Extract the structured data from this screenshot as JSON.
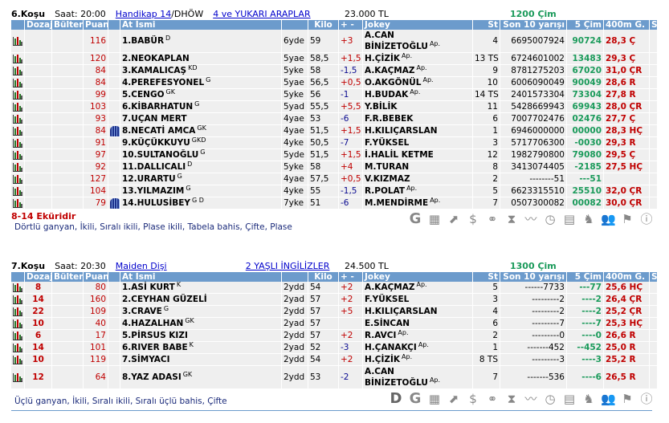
{
  "columns": {
    "dozaj": "Dozaj",
    "bulten": "Bülten",
    "puan": "Puan",
    "at_ismi": "At İsmi",
    "kilo": "Kilo",
    "plusminus": "+ -",
    "jokey": "Jokey",
    "st": "St",
    "son10": "Son 10 yarışı",
    "cim5": "5 Çim",
    "g400": "400m G.",
    "s": "S"
  },
  "colors": {
    "header_bg": "#6c9bcc",
    "row_bg": "#efefef",
    "positive": "#c00000",
    "negative": "#0a0a90",
    "green": "#1a9a5a",
    "red": "#c00000"
  },
  "races": [
    {
      "title": "6.Koşu",
      "time": "Saat: 20:00",
      "type": "Handikap  14",
      "type_suffix": "/DHÖW",
      "group": "4 ve YUKARI ARAPLAR",
      "prize": "23.000 TL",
      "distance": "1200 Çim",
      "note": "8-14 Eküridir",
      "bets": "Dörtlü ganyan, İkili, Sıralı ikili, Plase ikili, Tabela bahis, Çifte, Plase",
      "tools": [
        "G",
        "hourglass-calc",
        "trend-arrow",
        "$",
        "binoculars",
        "hourglass",
        "line-chart",
        "stopwatch",
        "calculator",
        "horse-head",
        "people",
        "jockey-flag",
        "info"
      ],
      "tool_glyphs": [
        "G",
        "▦",
        "⬈",
        "$",
        "⚭",
        "⧗",
        "〰",
        "◷",
        "▤",
        "♞",
        "👥",
        "⚑",
        "ⓘ"
      ],
      "horses": [
        {
          "dozaj": "",
          "bulten": "",
          "puan": "116",
          "silk": false,
          "name": "1.BABÜR",
          "sup": "D",
          "age": "6yde",
          "kilo": "59",
          "pm": "+3",
          "jokey": "A.CAN BİNİZETOĞLU",
          "jsup": "Ap.",
          "st": "4",
          "son10": "6695007924",
          "cim5": "90724",
          "g400": "28,3 Ç",
          "tall": true
        },
        {
          "dozaj": "",
          "bulten": "",
          "puan": "120",
          "silk": false,
          "name": "2.NEOKAPLAN",
          "sup": "",
          "age": "5yae",
          "kilo": "58,5",
          "pm": "+1,5",
          "jokey": "H.ÇİZİK",
          "jsup": "Ap.",
          "st": "13 TS",
          "son10": "6724601002",
          "cim5": "13483",
          "g400": "29,3 Ç"
        },
        {
          "dozaj": "",
          "bulten": "",
          "puan": "84",
          "silk": false,
          "name": "3.KAMALICAŞ",
          "sup": "KD",
          "age": "5yke",
          "kilo": "58",
          "pm": "-1,5",
          "jokey": "A.KAÇMAZ",
          "jsup": "Ap.",
          "st": "9",
          "son10": "8781275203",
          "cim5": "67020",
          "g400": "31,0 ÇR"
        },
        {
          "dozaj": "",
          "bulten": "",
          "puan": "84",
          "silk": false,
          "name": "4.PEREFESYONEL",
          "sup": "G",
          "age": "5yae",
          "kilo": "56,5",
          "pm": "+0,5",
          "jokey": "O.AKGÖNÜL",
          "jsup": "Ap.",
          "st": "10",
          "son10": "6006090049",
          "cim5": "90049",
          "g400": "28,6 R"
        },
        {
          "dozaj": "",
          "bulten": "",
          "puan": "99",
          "silk": false,
          "name": "5.CENGO",
          "sup": "GK",
          "age": "5yke",
          "kilo": "56",
          "pm": "-1",
          "jokey": "H.BUDAK",
          "jsup": "Ap.",
          "st": "14 TS",
          "son10": "2401573304",
          "cim5": "73304",
          "g400": "27,8 R"
        },
        {
          "dozaj": "",
          "bulten": "",
          "puan": "103",
          "silk": false,
          "name": "6.KİBARHATUN",
          "sup": "G",
          "age": "5yad",
          "kilo": "55,5",
          "pm": "+5,5",
          "jokey": "Y.BİLİK",
          "jsup": "",
          "st": "11",
          "son10": "5428669943",
          "cim5": "69943",
          "g400": "28,0 ÇR"
        },
        {
          "dozaj": "",
          "bulten": "",
          "puan": "93",
          "silk": false,
          "name": "7.UÇAN MERT",
          "sup": "",
          "age": "4yae",
          "kilo": "53",
          "pm": "-6",
          "jokey": "F.R.BEBEK",
          "jsup": "",
          "st": "6",
          "son10": "7007702476",
          "cim5": "02476",
          "g400": "27,7 Ç"
        },
        {
          "dozaj": "",
          "bulten": "",
          "puan": "84",
          "silk": true,
          "name": "8.NECATİ AMCA",
          "sup": "GK",
          "age": "4yae",
          "kilo": "51,5",
          "pm": "+1,5",
          "jokey": "H.KILIÇARSLAN",
          "jsup": "",
          "st": "1",
          "son10": "6946000000",
          "cim5": "00000",
          "g400": "28,3 HÇ"
        },
        {
          "dozaj": "",
          "bulten": "",
          "puan": "91",
          "silk": false,
          "name": "9.KÜÇÜKKUYU",
          "sup": "GKD",
          "age": "4yke",
          "kilo": "50,5",
          "pm": "-7",
          "jokey": "F.YÜKSEL",
          "jsup": "",
          "st": "3",
          "son10": "5717706300",
          "cim5": "-0030",
          "g400": "29,3 R"
        },
        {
          "dozaj": "",
          "bulten": "",
          "puan": "97",
          "silk": false,
          "name": "10.SULTANOĞLU",
          "sup": "G",
          "age": "5yde",
          "kilo": "51,5",
          "pm": "+1,5",
          "jokey": "İ.HALİL KETME",
          "jsup": "",
          "st": "12",
          "son10": "1982790800",
          "cim5": "79080",
          "g400": "29,5 Ç"
        },
        {
          "dozaj": "",
          "bulten": "",
          "puan": "92",
          "silk": false,
          "name": "11.DALLICALI",
          "sup": "D",
          "age": "5yke",
          "kilo": "58",
          "pm": "+4",
          "jokey": "M.TURAN",
          "jsup": "",
          "st": "8",
          "son10": "3413074405",
          "cim5": "-2185",
          "g400": "27,5 HÇ"
        },
        {
          "dozaj": "",
          "bulten": "",
          "puan": "127",
          "silk": false,
          "name": "12.URARTU",
          "sup": "G",
          "age": "4yae",
          "kilo": "57,5",
          "pm": "+0,5",
          "jokey": "V.KIZMAZ",
          "jsup": "",
          "st": "2",
          "son10": "--------51",
          "cim5": "---51",
          "g400": ""
        },
        {
          "dozaj": "",
          "bulten": "",
          "puan": "104",
          "silk": false,
          "name": "13.YILMAZIM",
          "sup": "G",
          "age": "4yke",
          "kilo": "55",
          "pm": "-1,5",
          "jokey": "R.POLAT",
          "jsup": "Ap.",
          "st": "5",
          "son10": "6623315510",
          "cim5": "25510",
          "g400": "32,0 ÇR"
        },
        {
          "dozaj": "",
          "bulten": "",
          "puan": "79",
          "silk": true,
          "name": "14.HULUSİBEY",
          "sup": "G D",
          "age": "7yke",
          "kilo": "51",
          "pm": "-6",
          "jokey": "M.MENDİRME",
          "jsup": "Ap.",
          "st": "7",
          "son10": "0507300082",
          "cim5": "00082",
          "g400": "30,0 ÇR"
        }
      ]
    },
    {
      "title": "7.Koşu",
      "time": "Saat: 20:30",
      "type": "Maiden  Dişi",
      "type_suffix": "",
      "group": "2 YAŞLI İNGİLİZLER",
      "prize": "24.500 TL",
      "distance": "1300 Çim",
      "note": "",
      "bets": "Üçlü ganyan, İkili, Sıralı ikili, Sıralı üçlü bahis, Çifte",
      "tools": [
        "D",
        "G",
        "hourglass-calc",
        "trend-arrow",
        "$",
        "binoculars",
        "hourglass",
        "line-chart",
        "stopwatch",
        "calculator",
        "horse-head",
        "people",
        "jockey-flag",
        "info"
      ],
      "tool_glyphs": [
        "D",
        "G",
        "▦",
        "⬈",
        "$",
        "⚭",
        "⧗",
        "〰",
        "◷",
        "▤",
        "♞",
        "👥",
        "⚑",
        "ⓘ"
      ],
      "horses": [
        {
          "dozaj": "8",
          "bulten": "",
          "puan": "80",
          "silk": false,
          "name": "1.ASİ KURT",
          "sup": "K",
          "age": "2ydd",
          "kilo": "54",
          "pm": "+2",
          "jokey": "A.KAÇMAZ",
          "jsup": "Ap.",
          "st": "5",
          "son10": "------7733",
          "cim5": "---77",
          "g400": "25,6 HÇ"
        },
        {
          "dozaj": "14",
          "bulten": "",
          "puan": "160",
          "silk": false,
          "name": "2.CEYHAN GÜZELİ",
          "sup": "",
          "age": "2yad",
          "kilo": "57",
          "pm": "+2",
          "jokey": "F.YÜKSEL",
          "jsup": "",
          "st": "3",
          "son10": "---------2",
          "cim5": "----2",
          "g400": "26,4 ÇR"
        },
        {
          "dozaj": "22",
          "bulten": "",
          "puan": "109",
          "silk": false,
          "name": "3.CRAVE",
          "sup": "G",
          "age": "2ydd",
          "kilo": "57",
          "pm": "+5",
          "jokey": "H.KILIÇARSLAN",
          "jsup": "",
          "st": "4",
          "son10": "---------2",
          "cim5": "----2",
          "g400": "25,2 ÇR"
        },
        {
          "dozaj": "10",
          "bulten": "",
          "puan": "40",
          "silk": false,
          "name": "4.HAZALHAN",
          "sup": "GK",
          "age": "2yad",
          "kilo": "57",
          "pm": "",
          "jokey": "E.SİNCAN",
          "jsup": "",
          "st": "6",
          "son10": "---------7",
          "cim5": "----7",
          "g400": "25,3 HÇ"
        },
        {
          "dozaj": "6",
          "bulten": "",
          "puan": "17",
          "silk": false,
          "name": "5.PİRSUS KIZI",
          "sup": "",
          "age": "2ydd",
          "kilo": "57",
          "pm": "+2",
          "jokey": "R.AVCI",
          "jsup": "Ap.",
          "st": "2",
          "son10": "---------0",
          "cim5": "----0",
          "g400": "26,6 R"
        },
        {
          "dozaj": "14",
          "bulten": "",
          "puan": "101",
          "silk": false,
          "name": "6.RIVER BABE",
          "sup": "K",
          "age": "2yad",
          "kilo": "52",
          "pm": "-3",
          "jokey": "H.ÇANAKÇI",
          "jsup": "Ap.",
          "st": "1",
          "son10": "-------452",
          "cim5": "--452",
          "g400": "25,0 R"
        },
        {
          "dozaj": "10",
          "bulten": "",
          "puan": "119",
          "silk": false,
          "name": "7.SİMYACI",
          "sup": "",
          "age": "2ydd",
          "kilo": "54",
          "pm": "+2",
          "jokey": "H.ÇİZİK",
          "jsup": "Ap.",
          "st": "8 TS",
          "son10": "---------3",
          "cim5": "----3",
          "g400": "25,2 R"
        },
        {
          "dozaj": "12",
          "bulten": "",
          "puan": "64",
          "silk": false,
          "name": "8.YAZ ADASI",
          "sup": "GK",
          "age": "2ydd",
          "kilo": "53",
          "pm": "-2",
          "jokey": "A.CAN BİNİZETOĞLU",
          "jsup": "Ap.",
          "st": "7",
          "son10": "-------536",
          "cim5": "----6",
          "g400": "26,5 R",
          "tall": true
        }
      ]
    }
  ]
}
